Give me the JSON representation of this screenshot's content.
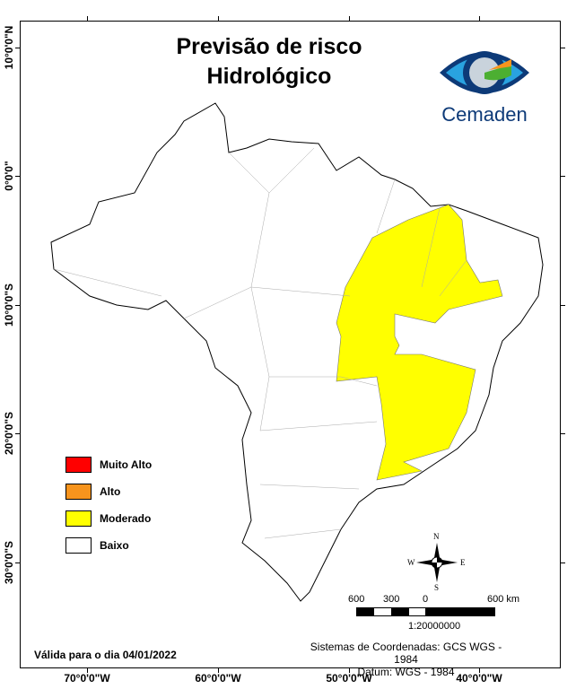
{
  "title_line1": "Previsão de risco",
  "title_line2": "Hidrológico",
  "logo": {
    "text": "Cemaden",
    "colors": [
      "#0d3a78",
      "#29a3e0",
      "#4caf32",
      "#f7941d"
    ]
  },
  "longitude_labels": [
    "70°0'0\"W",
    "60°0'0\"W",
    "50°0'0\"W",
    "40°0'0\"W"
  ],
  "latitude_labels": [
    "10°0'0\"N",
    "0°0'0\"",
    "10°0'0\"S",
    "20°0'0\"S",
    "30°0'0\"S"
  ],
  "legend": [
    {
      "label": "Muito Alto",
      "color": "#ff0000"
    },
    {
      "label": "Alto",
      "color": "#f7941d"
    },
    {
      "label": "Moderado",
      "color": "#ffff00"
    },
    {
      "label": "Baixo",
      "color": "#ffffff"
    }
  ],
  "north_arrow": {
    "n": "N",
    "s": "S",
    "e": "E",
    "w": "W"
  },
  "scale_bar": {
    "labels": [
      "600",
      "300",
      "0",
      "600 km"
    ],
    "ratio": "1:20000000"
  },
  "validity": "Válida para o dia 04/01/2022",
  "crs_line1": "Sistemas de Coordenadas: GCS WGS - 1984",
  "crs_line2": "Datum: WGS - 1984"
}
